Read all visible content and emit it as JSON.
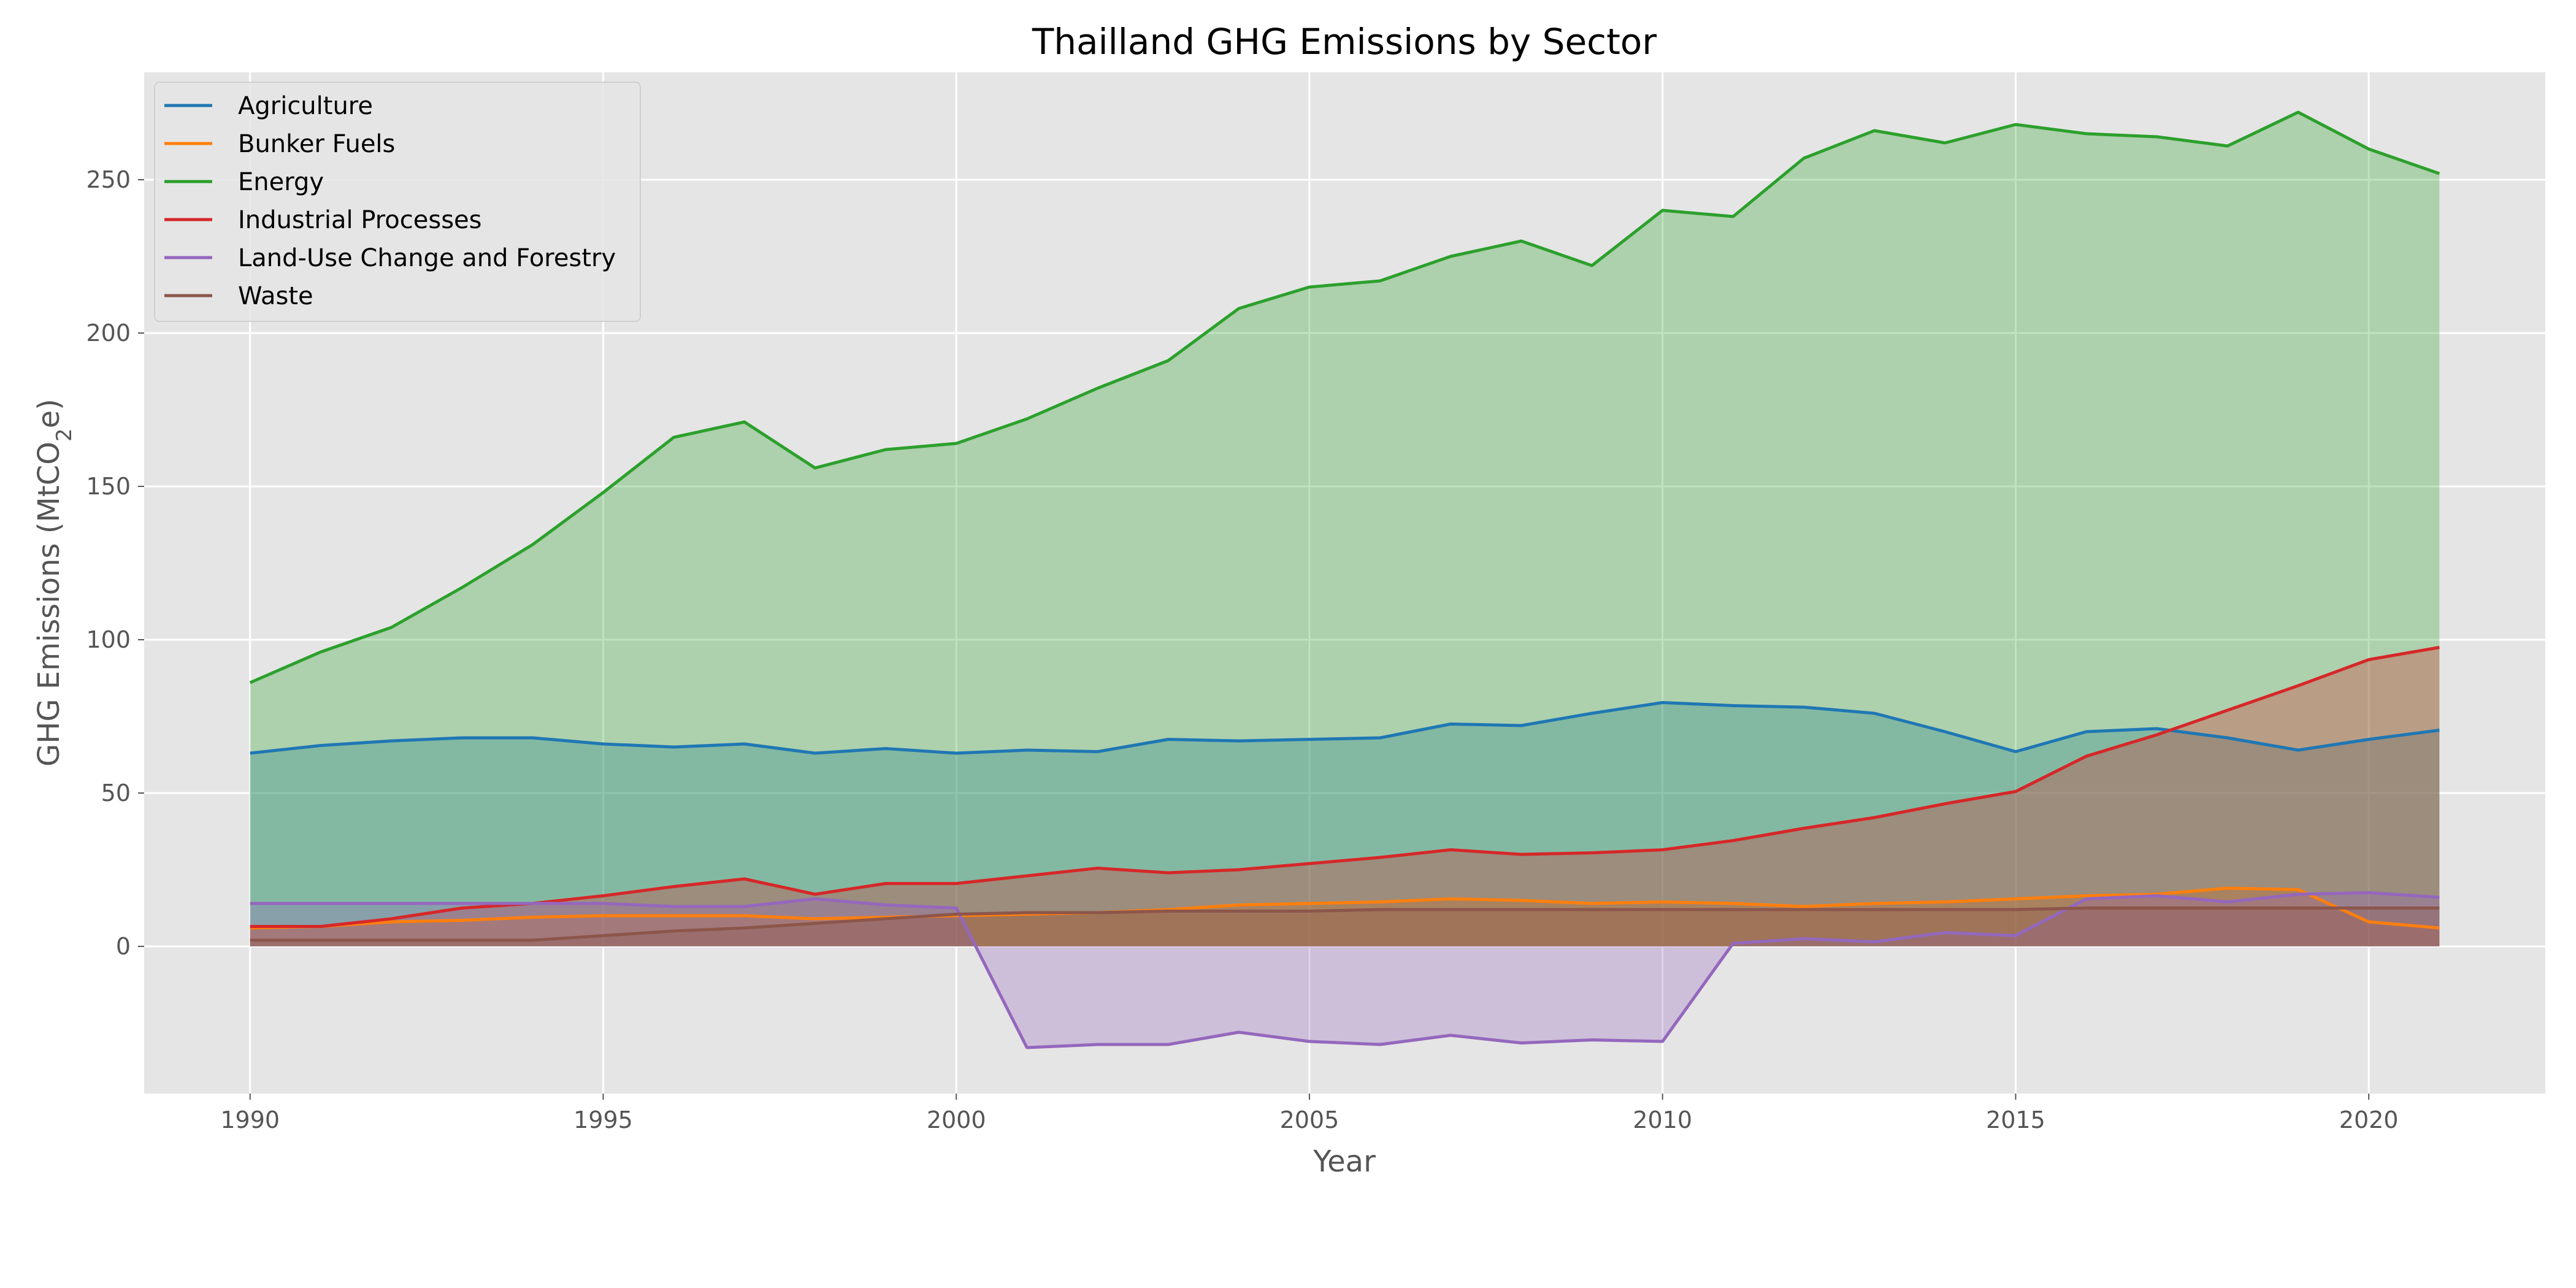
{
  "chart_data": {
    "type": "area",
    "title": "Thailland GHG Emissions by Sector",
    "xlabel": "Year",
    "ylabel_main": "GHG Emissions (MtCO",
    "ylabel_sub": "2",
    "ylabel_end": "e)",
    "xlim": [
      1988.5,
      2022.5
    ],
    "ylim": [
      -48,
      285
    ],
    "xticks": [
      1990,
      1995,
      2000,
      2005,
      2010,
      2015,
      2020
    ],
    "yticks": [
      0,
      50,
      100,
      150,
      200,
      250
    ],
    "grid": true,
    "legend_position": "upper-left",
    "x": [
      1990,
      1991,
      1992,
      1993,
      1994,
      1995,
      1996,
      1997,
      1998,
      1999,
      2000,
      2001,
      2002,
      2003,
      2004,
      2005,
      2006,
      2007,
      2008,
      2009,
      2010,
      2011,
      2012,
      2013,
      2014,
      2015,
      2016,
      2017,
      2018,
      2019,
      2020,
      2021
    ],
    "series": [
      {
        "name": "Agriculture",
        "color": "#1f77b4",
        "fill": "rgba(31,119,180,0.3)",
        "values": [
          63,
          65.5,
          67,
          68,
          68,
          66,
          65,
          66,
          63,
          64.5,
          63,
          64,
          63.5,
          67.5,
          67,
          67.5,
          68,
          72.5,
          72,
          76,
          79.5,
          78.5,
          78,
          76,
          70,
          63.5,
          70,
          71,
          68,
          64,
          67.5,
          70.5
        ]
      },
      {
        "name": "Bunker Fuels",
        "color": "#ff7f0e",
        "fill": "rgba(255,127,14,0.3)",
        "values": [
          6,
          6.5,
          8,
          8.5,
          9.5,
          10,
          10,
          10,
          9,
          9.5,
          10,
          10.5,
          11,
          12,
          13.5,
          14,
          14.5,
          15.5,
          15,
          14,
          14.5,
          14,
          13,
          14,
          14.5,
          15.5,
          16.5,
          17,
          19,
          18.5,
          8,
          6
        ]
      },
      {
        "name": "Energy",
        "color": "#2ca02c",
        "fill": "rgba(44,160,44,0.3)",
        "values": [
          86,
          96,
          104,
          117,
          131,
          148,
          166,
          171,
          156,
          162,
          164,
          172,
          182,
          191,
          208,
          215,
          217,
          225,
          230,
          222,
          240,
          238,
          257,
          266,
          262,
          268,
          265,
          264,
          261,
          272,
          260,
          252
        ]
      },
      {
        "name": "Industrial Processes",
        "color": "#d62728",
        "fill": "rgba(214,39,40,0.3)",
        "values": [
          6.5,
          6.5,
          9,
          12.5,
          14,
          16.5,
          19.5,
          22,
          17,
          20.5,
          20.5,
          23,
          25.5,
          24,
          25,
          27,
          29,
          31.5,
          30,
          30.5,
          31.5,
          34.5,
          38.5,
          42,
          46.5,
          50.5,
          62,
          69,
          77,
          85,
          93.5,
          97.5
        ]
      },
      {
        "name": "Land-Use Change and Forestry",
        "color": "#9467bd",
        "fill": "rgba(148,103,189,0.3)",
        "values": [
          14,
          14,
          14,
          14,
          14,
          14,
          13,
          13,
          15.5,
          13.5,
          12.5,
          -33,
          -32,
          -32,
          -28,
          -31,
          -32,
          -29,
          -31.5,
          -30.5,
          -31,
          1,
          2.5,
          1.5,
          4.5,
          3.5,
          15.5,
          16.5,
          14.5,
          17,
          17.5,
          16
        ]
      },
      {
        "name": "Waste",
        "color": "#8c564b",
        "fill": "rgba(140,86,75,0.3)",
        "values": [
          2,
          2,
          2,
          2,
          2,
          3.5,
          5,
          6,
          7.5,
          9,
          10.5,
          11,
          11,
          11.5,
          11.5,
          11.5,
          12,
          12,
          12,
          12,
          12,
          12,
          12,
          12,
          12,
          12,
          12.5,
          12.5,
          12.5,
          12.5,
          12.5,
          12.5
        ]
      }
    ]
  }
}
